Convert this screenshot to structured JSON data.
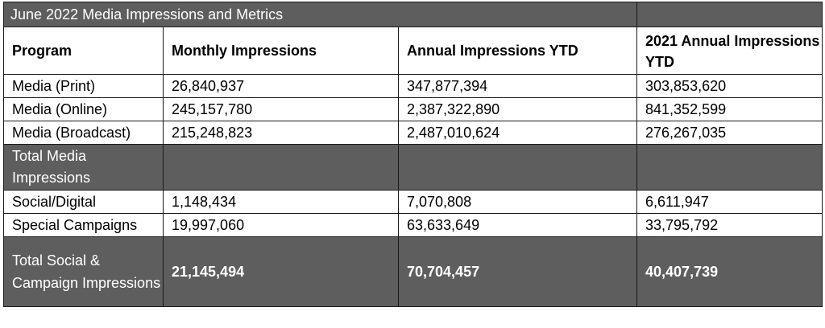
{
  "table": {
    "title": "June 2022 Media Impressions and Metrics",
    "headers": [
      "Program",
      "Monthly Impressions",
      "Annual Impressions YTD",
      "2021 Annual Impressions YTD"
    ],
    "rows": [
      [
        "Media (Print)",
        "26,840,937",
        "347,877,394",
        "303,853,620"
      ],
      [
        "Media (Online)",
        "245,157,780",
        "2,387,322,890",
        "841,352,599"
      ],
      [
        "Media (Broadcast)",
        "215,248,823",
        "2,487,010,624",
        "276,267,035"
      ]
    ],
    "total_media": {
      "label": "Total Media Impressions",
      "values": [
        "",
        "",
        ""
      ]
    },
    "rows2": [
      [
        "Social/Digital",
        "1,148,434",
        "7,070,808",
        "6,611,947"
      ],
      [
        "Special Campaigns",
        "19,997,060",
        "63,633,649",
        "33,795,792"
      ]
    ],
    "total_social": {
      "label": "Total Social & Campaign Impressions",
      "values": [
        "21,145,494",
        "70,704,457",
        "40,407,739"
      ]
    }
  }
}
